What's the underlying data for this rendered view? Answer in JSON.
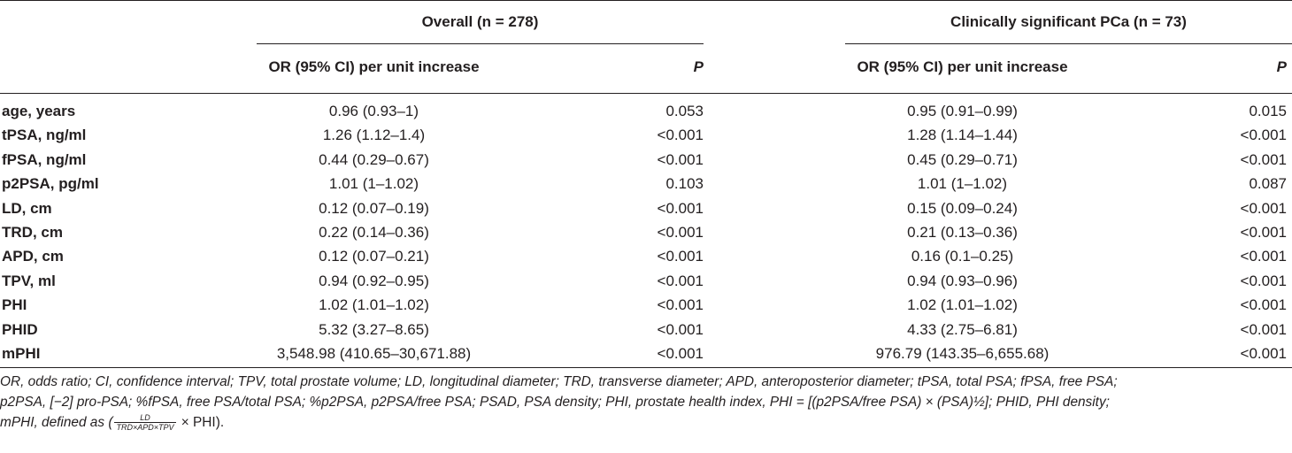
{
  "table": {
    "group_headers": [
      "Overall (n = 278)",
      "Clinically significant PCa (n = 73)"
    ],
    "sub_headers": {
      "or": "OR (95% CI) per unit increase",
      "p": "P"
    },
    "rows": [
      {
        "label": "age, years",
        "or1": "0.96 (0.93–1)",
        "p1": "0.053",
        "or2": "0.95 (0.91–0.99)",
        "p2": "0.015"
      },
      {
        "label": "tPSA, ng/ml",
        "or1": "1.26 (1.12–1.4)",
        "p1": "<0.001",
        "or2": "1.28 (1.14–1.44)",
        "p2": "<0.001"
      },
      {
        "label": "fPSA, ng/ml",
        "or1": "0.44 (0.29–0.67)",
        "p1": "<0.001",
        "or2": "0.45 (0.29–0.71)",
        "p2": "<0.001"
      },
      {
        "label": "p2PSA, pg/ml",
        "or1": "1.01 (1–1.02)",
        "p1": "0.103",
        "or2": "1.01 (1–1.02)",
        "p2": "0.087"
      },
      {
        "label": "LD, cm",
        "or1": "0.12 (0.07–0.19)",
        "p1": "<0.001",
        "or2": "0.15 (0.09–0.24)",
        "p2": "<0.001"
      },
      {
        "label": "TRD, cm",
        "or1": "0.22 (0.14–0.36)",
        "p1": "<0.001",
        "or2": "0.21 (0.13–0.36)",
        "p2": "<0.001"
      },
      {
        "label": "APD, cm",
        "or1": "0.12 (0.07–0.21)",
        "p1": "<0.001",
        "or2": "0.16 (0.1–0.25)",
        "p2": "<0.001"
      },
      {
        "label": "TPV, ml",
        "or1": "0.94 (0.92–0.95)",
        "p1": "<0.001",
        "or2": "0.94 (0.93–0.96)",
        "p2": "<0.001"
      },
      {
        "label": "PHI",
        "or1": "1.02 (1.01–1.02)",
        "p1": "<0.001",
        "or2": "1.02 (1.01–1.02)",
        "p2": "<0.001"
      },
      {
        "label": "PHID",
        "or1": "5.32 (3.27–8.65)",
        "p1": "<0.001",
        "or2": "4.33 (2.75–6.81)",
        "p2": "<0.001"
      },
      {
        "label": "mPHI",
        "or1": "3,548.98 (410.65–30,671.88)",
        "p1": "<0.001",
        "or2": "976.79 (143.35–6,655.68)",
        "p2": "<0.001"
      }
    ]
  },
  "footnote": {
    "line1": "OR, odds ratio; CI, confidence interval; TPV, total prostate volume; LD, longitudinal diameter; TRD, transverse diameter; APD, anteroposterior diameter; tPSA, total PSA; fPSA, free PSA;",
    "line2": "p2PSA, [−2] pro-PSA; %fPSA, free PSA/total PSA; %p2PSA, p2PSA/free PSA; PSAD, PSA density; PHI, prostate health index, PHI = [(p2PSA/free PSA) × (PSA)½]; PHID, PHI density;",
    "line3_prefix": "mPHI, defined as (",
    "frac_num": "LD",
    "frac_den": "TRD×APD×TPV",
    "line3_suffix": " × PHI)."
  }
}
